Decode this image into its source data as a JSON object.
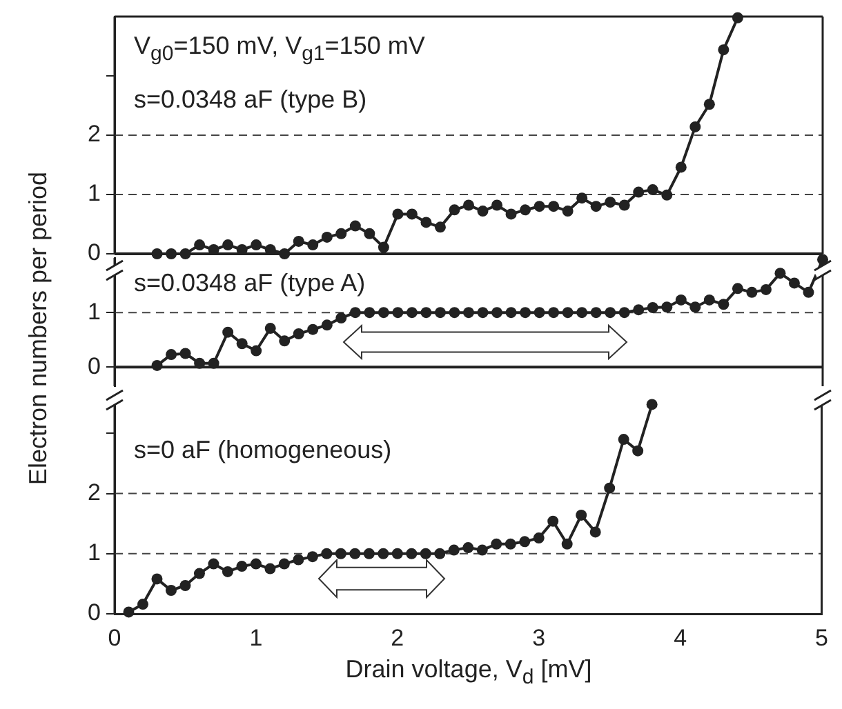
{
  "chart_data": [
    {
      "type": "line",
      "annotations": [
        "V$_{g0}$=150 mV, V$_{g1}$=150 mV",
        "s=0.0348 aF (type B)"
      ],
      "xlim": [
        0,
        5
      ],
      "ylim": [
        0,
        4
      ],
      "yticks": [
        0,
        1,
        2,
        {
          "value": 3,
          "label": null
        }
      ],
      "tick_labels": "y",
      "marker": "circle",
      "line_style": "solid",
      "grid": false,
      "ref_lines": [
        {
          "axis": "y",
          "value": 1,
          "line_style": "dashed"
        },
        {
          "axis": "y",
          "value": 2,
          "line_style": "dashed"
        }
      ],
      "series": [
        {
          "color": "#222222",
          "x": [
            0.3,
            0.4,
            0.5,
            0.6,
            0.7,
            0.8,
            0.9,
            1.0,
            1.1,
            1.2,
            1.3,
            1.4,
            1.5,
            1.6,
            1.7,
            1.8,
            1.9,
            2.0,
            2.1,
            2.2,
            2.3,
            2.4,
            2.5,
            2.6,
            2.7,
            2.8,
            2.9,
            3.0,
            3.1,
            3.2,
            3.3,
            3.4,
            3.5,
            3.6,
            3.7,
            3.8,
            3.9,
            4.0,
            4.1,
            4.2,
            4.3,
            4.4
          ],
          "values": [
            0,
            0,
            0,
            0.15,
            0.07,
            0.15,
            0.07,
            0.15,
            0.07,
            0,
            0.21,
            0.15,
            0.28,
            0.34,
            0.47,
            0.34,
            0.11,
            0.67,
            0.67,
            0.53,
            0.45,
            0.74,
            0.82,
            0.72,
            0.82,
            0.67,
            0.74,
            0.8,
            0.8,
            0.72,
            0.94,
            0.8,
            0.87,
            0.82,
            1.04,
            1.08,
            0.99,
            1.46,
            2.14,
            2.52,
            3.44,
            3.98
          ]
        }
      ]
    },
    {
      "type": "line",
      "annotations": [
        "s=0.0348 aF (type A)"
      ],
      "ylabel": "Electron numbers per period",
      "xlim": [
        0,
        5
      ],
      "ylim": [
        -0.35,
        2
      ],
      "yticks": [
        0,
        1
      ],
      "tick_labels": "y",
      "marker": "circle",
      "line_style": "solid",
      "grid": false,
      "ref_lines": [
        {
          "axis": "y",
          "value": 0,
          "line_style": "solid"
        },
        {
          "axis": "y",
          "value": 1,
          "line_style": "dashed"
        }
      ],
      "series": [
        {
          "color": "#222222",
          "x": [
            0.3,
            0.4,
            0.5,
            0.6,
            0.7,
            0.8,
            0.9,
            1.0,
            1.1,
            1.2,
            1.3,
            1.4,
            1.5,
            1.6,
            1.7,
            1.8,
            1.9,
            2.0,
            2.1,
            2.2,
            2.3,
            2.4,
            2.5,
            2.6,
            2.7,
            2.8,
            2.9,
            3.0,
            3.1,
            3.2,
            3.3,
            3.4,
            3.5,
            3.6,
            3.7,
            3.8,
            3.9,
            4.0,
            4.1,
            4.2,
            4.3,
            4.4,
            4.5,
            4.6,
            4.7,
            4.8,
            4.9,
            5.0
          ],
          "values": [
            0.03,
            0.23,
            0.25,
            0.07,
            0.07,
            0.64,
            0.43,
            0.3,
            0.71,
            0.48,
            0.61,
            0.69,
            0.77,
            0.9,
            1,
            1,
            1,
            1,
            1,
            1,
            1,
            1,
            1,
            1,
            1,
            1,
            1,
            1,
            1,
            1,
            1,
            1,
            1,
            1,
            1.05,
            1.09,
            1.1,
            1.23,
            1.1,
            1.23,
            1.15,
            1.44,
            1.37,
            1.42,
            1.72,
            1.54,
            1.37,
            1.97
          ]
        }
      ]
    },
    {
      "type": "line",
      "annotations": [
        "s=0 aF (homogeneous)"
      ],
      "xlabel": "Drain voltage, V$_{d}$ [mV]",
      "xlim": [
        0,
        5
      ],
      "xticks": [
        0,
        1,
        2,
        3,
        4,
        5
      ],
      "ylim": [
        0,
        3.6
      ],
      "yticks": [
        0,
        1,
        2,
        {
          "value": 3,
          "label": null
        }
      ],
      "marker": "circle",
      "line_style": "solid",
      "grid": false,
      "ref_lines": [
        {
          "axis": "y",
          "value": 1,
          "line_style": "dashed"
        },
        {
          "axis": "y",
          "value": 2,
          "line_style": "dashed"
        }
      ],
      "series": [
        {
          "color": "#222222",
          "x": [
            0.1,
            0.2,
            0.3,
            0.4,
            0.5,
            0.6,
            0.7,
            0.8,
            0.9,
            1.0,
            1.1,
            1.2,
            1.3,
            1.4,
            1.5,
            1.6,
            1.7,
            1.8,
            1.9,
            2.0,
            2.1,
            2.2,
            2.3,
            2.4,
            2.5,
            2.6,
            2.7,
            2.8,
            2.9,
            3.0,
            3.1,
            3.2,
            3.3,
            3.4,
            3.5,
            3.6,
            3.7,
            3.8
          ],
          "values": [
            0.03,
            0.16,
            0.58,
            0.39,
            0.47,
            0.67,
            0.83,
            0.7,
            0.79,
            0.83,
            0.75,
            0.83,
            0.9,
            0.95,
            1,
            1,
            1,
            1,
            1,
            1,
            1,
            1,
            1,
            1.06,
            1.1,
            1.06,
            1.16,
            1.16,
            1.2,
            1.26,
            1.54,
            1.16,
            1.64,
            1.36,
            2.09,
            2.9,
            2.71,
            3.48
          ]
        }
      ]
    }
  ]
}
